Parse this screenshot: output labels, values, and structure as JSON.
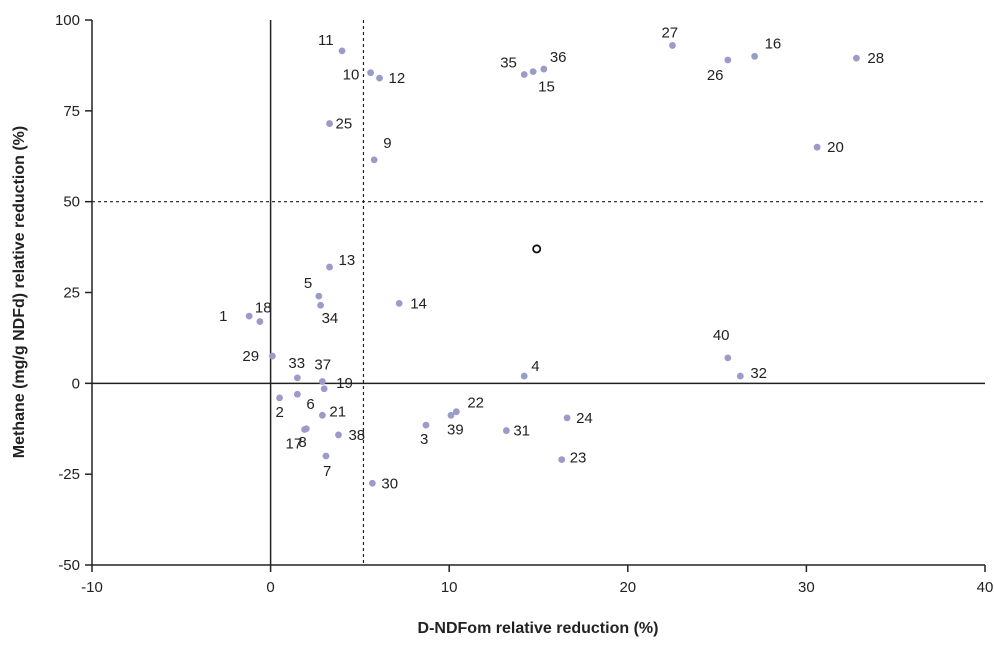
{
  "chart_data": {
    "type": "scatter",
    "xlabel": "D-NDFom relative reduction (%)",
    "ylabel": "Methane (mg/g NDFd) relative reduction (%)",
    "xlim": [
      -10,
      40
    ],
    "ylim": [
      -50,
      100
    ],
    "xticks": [
      -10,
      0,
      10,
      20,
      30,
      40
    ],
    "yticks": [
      -50,
      -25,
      0,
      25,
      50,
      75,
      100
    ],
    "reference_lines": {
      "x_solid": 0,
      "y_solid": 0,
      "x_dashed": 5.2,
      "y_dashed": 50
    },
    "colors": {
      "point": "#9b9bc9",
      "axis": "#222222"
    },
    "points": [
      {
        "label": "1",
        "x": -1.2,
        "y": 18.5
      },
      {
        "label": "2",
        "x": 0.5,
        "y": -4
      },
      {
        "label": "3",
        "x": 8.7,
        "y": -11.5
      },
      {
        "label": "4",
        "x": 14.2,
        "y": 2
      },
      {
        "label": "5",
        "x": 2.7,
        "y": 24
      },
      {
        "label": "6",
        "x": 1.5,
        "y": -3
      },
      {
        "label": "7",
        "x": 3.1,
        "y": -20
      },
      {
        "label": "8",
        "x": 2,
        "y": -12.5
      },
      {
        "label": "9",
        "x": 5.8,
        "y": 61.5
      },
      {
        "label": "10",
        "x": 5.6,
        "y": 85.5
      },
      {
        "label": "11",
        "x": 4,
        "y": 91.5
      },
      {
        "label": "12",
        "x": 6.1,
        "y": 84
      },
      {
        "label": "13",
        "x": 3.3,
        "y": 32
      },
      {
        "label": "14",
        "x": 7.2,
        "y": 22
      },
      {
        "label": "15",
        "x": 14.7,
        "y": 85.8
      },
      {
        "label": "16",
        "x": 27.1,
        "y": 90
      },
      {
        "label": "17",
        "x": 1.9,
        "y": -12.7
      },
      {
        "label": "18",
        "x": -0.6,
        "y": 17
      },
      {
        "label": "19",
        "x": 3,
        "y": -1.5
      },
      {
        "label": "20",
        "x": 30.6,
        "y": 65
      },
      {
        "label": "21",
        "x": 2.9,
        "y": -8.8
      },
      {
        "label": "22",
        "x": 10.4,
        "y": -7.8
      },
      {
        "label": "23",
        "x": 16.3,
        "y": -21
      },
      {
        "label": "24",
        "x": 16.6,
        "y": -9.5
      },
      {
        "label": "25",
        "x": 3.3,
        "y": 71.5
      },
      {
        "label": "26",
        "x": 25.6,
        "y": 89
      },
      {
        "label": "27",
        "x": 22.5,
        "y": 93
      },
      {
        "label": "28",
        "x": 32.8,
        "y": 89.5
      },
      {
        "label": "29",
        "x": 0.1,
        "y": 7.5
      },
      {
        "label": "30",
        "x": 5.7,
        "y": -27.5
      },
      {
        "label": "31",
        "x": 13.2,
        "y": -13
      },
      {
        "label": "32",
        "x": 26.3,
        "y": 2
      },
      {
        "label": "33",
        "x": 1.5,
        "y": 1.5
      },
      {
        "label": "34",
        "x": 2.8,
        "y": 21.5
      },
      {
        "label": "35",
        "x": 14.2,
        "y": 85
      },
      {
        "label": "36",
        "x": 15.3,
        "y": 86.5
      },
      {
        "label": "37",
        "x": 2.9,
        "y": 0.5
      },
      {
        "label": "38",
        "x": 3.8,
        "y": -14.2
      },
      {
        "label": "39",
        "x": 10.1,
        "y": -8.8
      },
      {
        "label": "40",
        "x": 25.6,
        "y": 7
      }
    ],
    "highlight_point": {
      "x": 14.9,
      "y": 37
    }
  }
}
